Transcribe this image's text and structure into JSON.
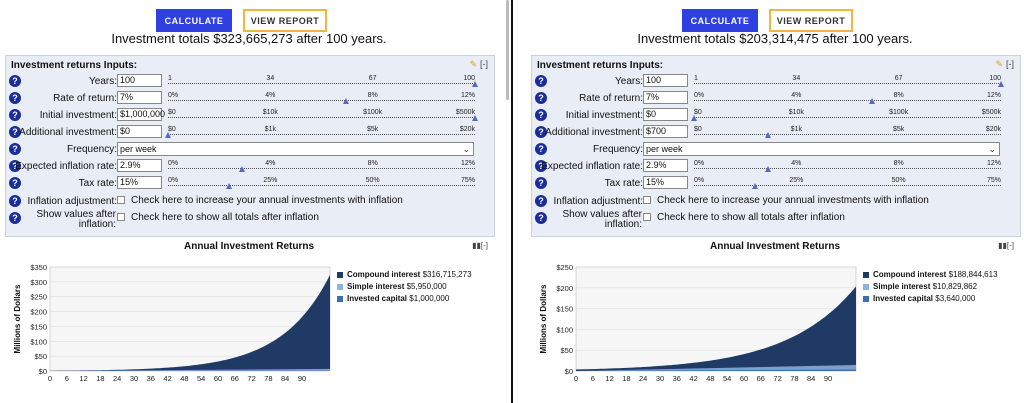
{
  "ui": {
    "calculate_label": "CALCULATE",
    "view_report_label": "VIEW REPORT",
    "inputs_title": "Investment returns Inputs:",
    "collapse_label": "[-]",
    "chart_title": "Annual Investment Returns",
    "labels": {
      "years": "Years:",
      "rate": "Rate of return:",
      "initial": "Initial investment:",
      "additional": "Additional investment:",
      "frequency": "Frequency:",
      "inflation_rate": "Expected inflation rate:",
      "tax": "Tax rate:",
      "inflation_adjustment": "Inflation adjustment:",
      "show_after_line1": "Show values after",
      "show_after_line2": "inflation:"
    },
    "check_inflation_text": "Check here to increase your annual investments with inflation",
    "check_show_text": "Check here to show all totals after inflation",
    "scales": {
      "years": [
        "1",
        "34",
        "67",
        "100"
      ],
      "rate": [
        "0%",
        "4%",
        "8%",
        "12%"
      ],
      "initial": [
        "$0",
        "$10k",
        "$100k",
        "$500k"
      ],
      "additional": [
        "$0",
        "$1k",
        "$5k",
        "$20k"
      ],
      "inflation": [
        "0%",
        "4%",
        "8%",
        "12%"
      ],
      "tax": [
        "0%",
        "25%",
        "50%",
        "75%"
      ]
    },
    "colors": {
      "calculate_bg": "#2f3fe0",
      "report_border": "#f0b640",
      "compound": "#1f3a64",
      "simple": "#8fb2dc",
      "invested": "#3d6fb0",
      "help_icon": "#1a2d9a"
    }
  },
  "panels": [
    {
      "totals_text": "Investment totals $323,665,273 after 100 years.",
      "years": "100",
      "rate": "7%",
      "initial": "$1,000,000",
      "additional": "$0",
      "frequency": "per week",
      "inflation_rate": "2.9%",
      "tax": "15%",
      "slider_fractions": {
        "years": 1.0,
        "rate": 0.58,
        "initial": 1.0,
        "additional": 0.0,
        "inflation": 0.24,
        "tax": 0.2
      },
      "legend": {
        "compound": "Compound interest",
        "compound_value": "$316,715,273",
        "simple": "Simple interest",
        "simple_value": "$5,950,000",
        "invested": "Invested capital",
        "invested_value": "$1,000,000"
      },
      "chart_data": {
        "type": "area",
        "ylabel": "Millions of Dollars",
        "y_ticks": [
          "$0",
          "$50",
          "$100",
          "$150",
          "$200",
          "$250",
          "$300",
          "$350"
        ],
        "x_ticks": [
          "0",
          "6",
          "12",
          "18",
          "24",
          "30",
          "36",
          "42",
          "48",
          "54",
          "60",
          "66",
          "72",
          "78",
          "84",
          "90"
        ],
        "ylim": [
          0,
          350
        ],
        "xlim": [
          0,
          100
        ],
        "total": 323.67,
        "invested_capital": 1.0,
        "simple_interest": 5.95
      }
    },
    {
      "totals_text": "Investment totals $203,314,475 after 100 years.",
      "years": "100",
      "rate": "7%",
      "initial": "$0",
      "additional": "$700",
      "frequency": "per week",
      "inflation_rate": "2.9%",
      "tax": "15%",
      "slider_fractions": {
        "years": 1.0,
        "rate": 0.58,
        "initial": 0.0,
        "additional": 0.24,
        "inflation": 0.24,
        "tax": 0.2
      },
      "legend": {
        "compound": "Compound interest",
        "compound_value": "$188,844,613",
        "simple": "Simple interest",
        "simple_value": "$10,829,862",
        "invested": "Invested capital",
        "invested_value": "$3,640,000"
      },
      "chart_data": {
        "type": "area",
        "ylabel": "Millions of Dollars",
        "y_ticks": [
          "$0",
          "$50",
          "$100",
          "$150",
          "$200",
          "$250"
        ],
        "x_ticks": [
          "0",
          "6",
          "12",
          "18",
          "24",
          "30",
          "36",
          "42",
          "48",
          "54",
          "60",
          "66",
          "72",
          "78",
          "84",
          "90"
        ],
        "ylim": [
          0,
          250
        ],
        "xlim": [
          0,
          100
        ],
        "total": 203.31,
        "invested_capital": 3.64,
        "simple_interest": 10.83
      }
    }
  ]
}
